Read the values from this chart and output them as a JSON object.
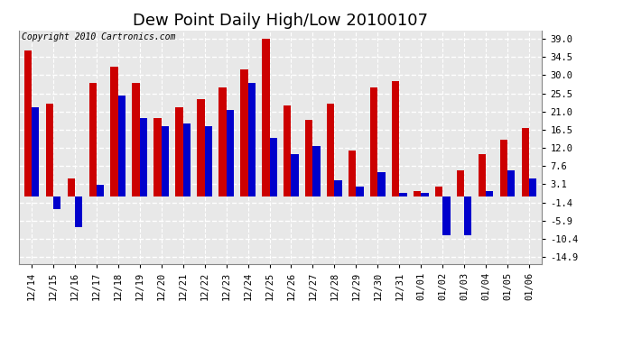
{
  "title": "Dew Point Daily High/Low 20100107",
  "copyright": "Copyright 2010 Cartronics.com",
  "dates": [
    "12/14",
    "12/15",
    "12/16",
    "12/17",
    "12/18",
    "12/19",
    "12/20",
    "12/21",
    "12/22",
    "12/23",
    "12/24",
    "12/25",
    "12/26",
    "12/27",
    "12/28",
    "12/29",
    "12/30",
    "12/31",
    "01/01",
    "01/02",
    "01/03",
    "01/04",
    "01/05",
    "01/06"
  ],
  "highs": [
    36.0,
    23.0,
    4.5,
    28.0,
    32.0,
    28.0,
    19.5,
    22.0,
    24.0,
    27.0,
    31.5,
    39.0,
    22.5,
    19.0,
    23.0,
    11.5,
    27.0,
    28.5,
    1.5,
    2.5,
    6.5,
    10.5,
    14.0,
    17.0
  ],
  "lows": [
    22.0,
    -3.0,
    -7.5,
    3.0,
    25.0,
    19.5,
    17.5,
    18.0,
    17.5,
    21.5,
    28.0,
    14.5,
    10.5,
    12.5,
    4.0,
    2.5,
    6.0,
    1.0,
    1.0,
    -9.5,
    -9.5,
    1.5,
    6.5,
    4.5
  ],
  "high_color": "#cc0000",
  "low_color": "#0000cc",
  "background_color": "#ffffff",
  "plot_bg_color": "#e8e8e8",
  "grid_color": "#ffffff",
  "yticks": [
    39.0,
    34.5,
    30.0,
    25.5,
    21.0,
    16.5,
    12.0,
    7.6,
    3.1,
    -1.4,
    -5.9,
    -10.4,
    -14.9
  ],
  "ylim": [
    -16.5,
    41.0
  ],
  "bar_width": 0.35,
  "title_fontsize": 13,
  "tick_fontsize": 7.5,
  "copyright_fontsize": 7
}
